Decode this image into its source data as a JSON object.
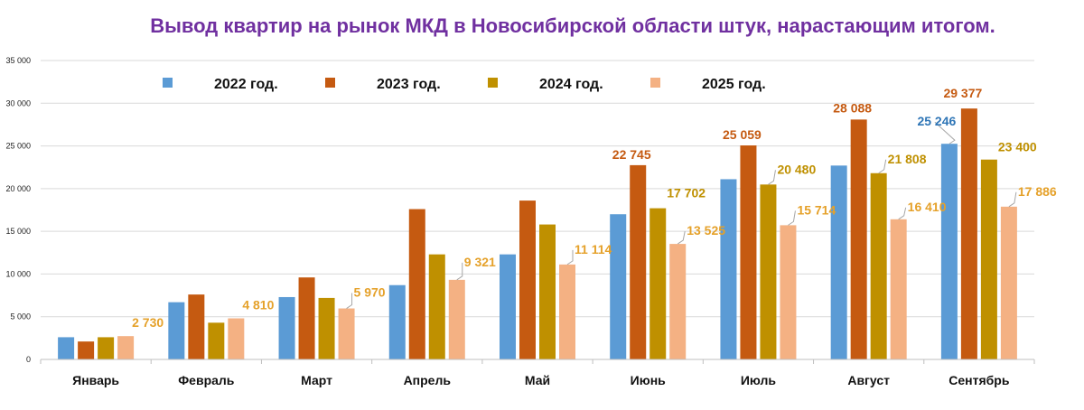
{
  "chart_data": {
    "type": "bar",
    "title": "Вывод квартир на рынок МКД в Новосибирской области штук, нарастающим итогом.",
    "categories": [
      "Январь",
      "Февраль",
      "Март",
      "Апрель",
      "Май",
      "Июнь",
      "Июль",
      "Август",
      "Сентябрь"
    ],
    "series": [
      {
        "name": "2022 год.",
        "color": "#5b9bd5",
        "values": [
          2600,
          6700,
          7300,
          8700,
          12300,
          17000,
          21100,
          22700,
          25246
        ]
      },
      {
        "name": "2023 год.",
        "color": "#c55a11",
        "values": [
          2100,
          7600,
          9600,
          17600,
          18600,
          22745,
          25059,
          28088,
          29377
        ]
      },
      {
        "name": "2024 год.",
        "color": "#bf9000",
        "values": [
          2600,
          4300,
          7200,
          12300,
          15800,
          17702,
          20480,
          21808,
          23400
        ]
      },
      {
        "name": "2025 год.",
        "color": "#f4b183",
        "values": [
          2730,
          4810,
          5970,
          9321,
          11114,
          13525,
          15714,
          16410,
          17886
        ]
      }
    ],
    "ylim": [
      0,
      35000
    ],
    "yticks": [
      0,
      5000,
      10000,
      15000,
      20000,
      25000,
      30000,
      35000
    ],
    "ytick_labels": [
      "0",
      "5 000",
      "10 000",
      "15 000",
      "20 000",
      "25 000",
      "30 000",
      "35 000"
    ],
    "grid": true,
    "legend_position": "top",
    "title_color": "#7030a0",
    "labels_shown": [
      {
        "series": 3,
        "category": 0,
        "text": "2 730",
        "color": "#e5a12a"
      },
      {
        "series": 3,
        "category": 1,
        "text": "4 810",
        "color": "#e5a12a"
      },
      {
        "series": 3,
        "category": 2,
        "text": "5 970",
        "color": "#e5a12a"
      },
      {
        "series": 3,
        "category": 3,
        "text": "9 321",
        "color": "#e5a12a"
      },
      {
        "series": 3,
        "category": 4,
        "text": "11 114",
        "color": "#e5a12a"
      },
      {
        "series": 1,
        "category": 5,
        "text": "22 745",
        "color": "#c55a11"
      },
      {
        "series": 2,
        "category": 5,
        "text": "17 702",
        "color": "#bf9000"
      },
      {
        "series": 3,
        "category": 5,
        "text": "13 525",
        "color": "#e5a12a"
      },
      {
        "series": 1,
        "category": 6,
        "text": "25 059",
        "color": "#c55a11"
      },
      {
        "series": 2,
        "category": 6,
        "text": "20 480",
        "color": "#bf9000"
      },
      {
        "series": 3,
        "category": 6,
        "text": "15 714",
        "color": "#e5a12a"
      },
      {
        "series": 1,
        "category": 7,
        "text": "28 088",
        "color": "#c55a11"
      },
      {
        "series": 2,
        "category": 7,
        "text": "21 808",
        "color": "#bf9000"
      },
      {
        "series": 3,
        "category": 7,
        "text": "16 410",
        "color": "#e5a12a"
      },
      {
        "series": 0,
        "category": 8,
        "text": "25 246",
        "color": "#2e75b6"
      },
      {
        "series": 1,
        "category": 8,
        "text": "29 377",
        "color": "#c55a11"
      },
      {
        "series": 2,
        "category": 8,
        "text": "23 400",
        "color": "#bf9000"
      },
      {
        "series": 3,
        "category": 8,
        "text": "17 886",
        "color": "#e5a12a"
      }
    ]
  }
}
